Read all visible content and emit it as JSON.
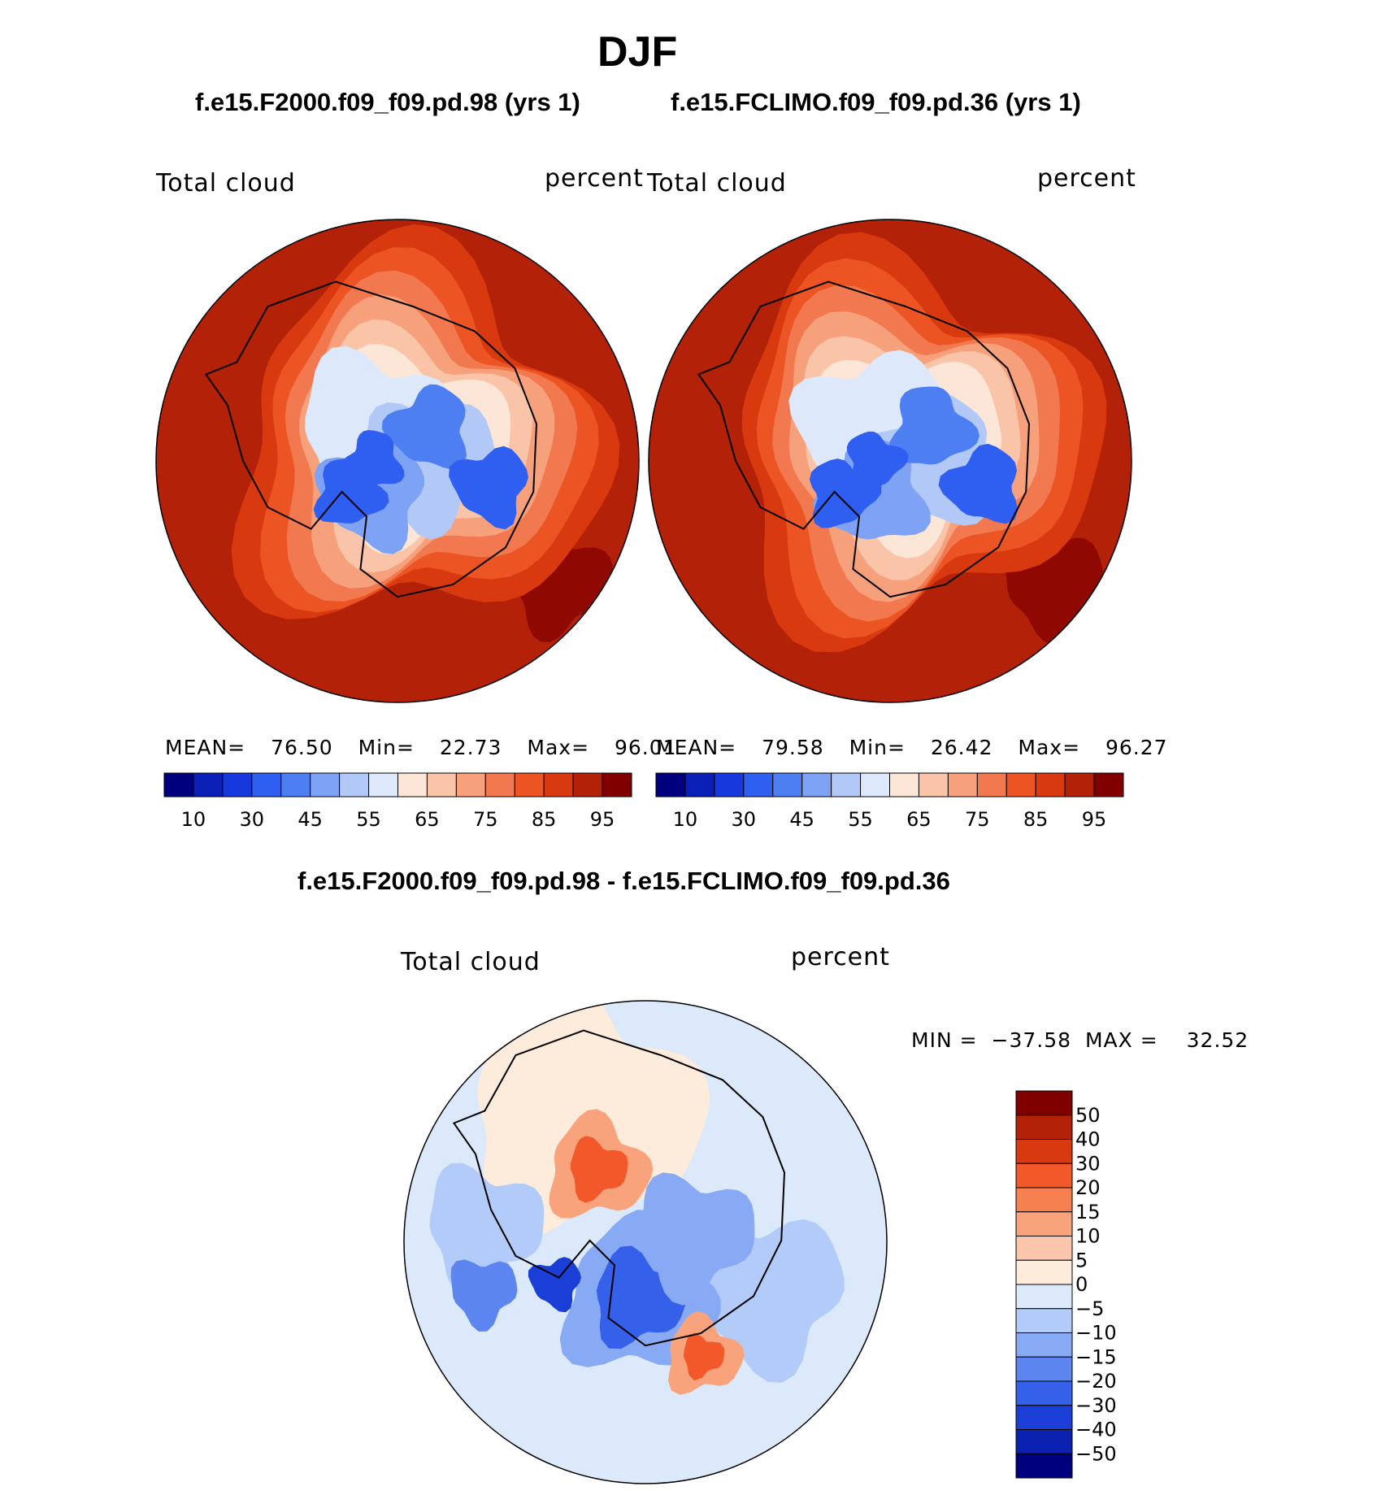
{
  "figure": {
    "season": "DJF",
    "case_a": "f.e15.F2000.f09_f09.pd.98 (yrs 1)",
    "case_b": "f.e15.FCLIMO.f09_f09.pd.36 (yrs 1)",
    "diff_title": "f.e15.F2000.f09_f09.pd.98 - f.e15.FCLIMO.f09_f09.pd.36"
  },
  "chart_data": [
    {
      "type": "heatmap",
      "projection": "south polar stereographic",
      "variable": "Total cloud",
      "units": "percent",
      "title": "f.e15.F2000.f09_f09.pd.98 (yrs 1)",
      "stats": {
        "mean_label": "MEAN=",
        "mean": "76.50",
        "min_label": "Min=",
        "min": "22.73",
        "max_label": "Max=",
        "max": "96.01"
      },
      "levels": [
        5,
        10,
        20,
        30,
        40,
        45,
        50,
        55,
        60,
        65,
        70,
        75,
        80,
        85,
        90,
        95
      ],
      "tick_labels": [
        "10",
        "30",
        "45",
        "55",
        "65",
        "75",
        "85",
        "95"
      ],
      "colors": [
        "#00007e",
        "#0a1fb5",
        "#1638dc",
        "#2f5ff0",
        "#4d7ff2",
        "#7ea2f4",
        "#b2c8f7",
        "#dde8fa",
        "#fbe6d8",
        "#f9c4a8",
        "#f6a17c",
        "#f2784f",
        "#ec5424",
        "#d8390f",
        "#b22108",
        "#800000"
      ]
    },
    {
      "type": "heatmap",
      "projection": "south polar stereographic",
      "variable": "Total cloud",
      "units": "percent",
      "title": "f.e15.FCLIMO.f09_f09.pd.36 (yrs 1)",
      "stats": {
        "mean_label": "MEAN=",
        "mean": "79.58",
        "min_label": "Min=",
        "min": "26.42",
        "max_label": "Max=",
        "max": "96.27"
      },
      "levels": [
        5,
        10,
        20,
        30,
        40,
        45,
        50,
        55,
        60,
        65,
        70,
        75,
        80,
        85,
        90,
        95
      ],
      "tick_labels": [
        "10",
        "30",
        "45",
        "55",
        "65",
        "75",
        "85",
        "95"
      ],
      "colors": [
        "#00007e",
        "#0a1fb5",
        "#1638dc",
        "#2f5ff0",
        "#4d7ff2",
        "#7ea2f4",
        "#b2c8f7",
        "#dde8fa",
        "#fbe6d8",
        "#f9c4a8",
        "#f6a17c",
        "#f2784f",
        "#ec5424",
        "#d8390f",
        "#b22108",
        "#800000"
      ]
    },
    {
      "type": "heatmap",
      "projection": "south polar stereographic",
      "variable": "Total cloud",
      "units": "percent",
      "title": "f.e15.F2000.f09_f09.pd.98 - f.e15.FCLIMO.f09_f09.pd.36",
      "stats": {
        "min_label": "MIN =",
        "min": "−37.58",
        "max_label": "MAX =",
        "max": "32.52"
      },
      "tick_labels": [
        "50",
        "40",
        "30",
        "20",
        "15",
        "10",
        "5",
        "0",
        "−5",
        "−10",
        "−15",
        "−20",
        "−30",
        "−40",
        "−50"
      ],
      "colors": [
        "#800000",
        "#b22108",
        "#d8390f",
        "#f2582a",
        "#f6804f",
        "#f9a37d",
        "#fbc6ac",
        "#fdebdc",
        "#dbe9fb",
        "#b3cbf8",
        "#88aaf4",
        "#5d85f0",
        "#3560ea",
        "#1b3fd6",
        "#0b22b0",
        "#00007e"
      ]
    }
  ]
}
